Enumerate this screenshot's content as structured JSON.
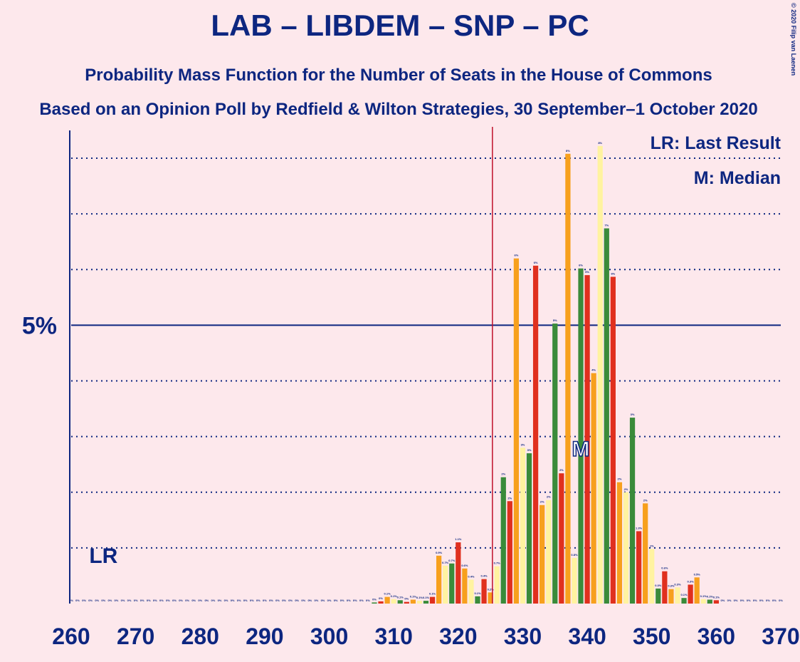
{
  "chart_data": {
    "type": "bar",
    "title": "LAB – LIBDEM – SNP – PC",
    "subtitle": "Probability Mass Function for the Number of Seats in the House of Commons",
    "subtitle2": "Based on an Opinion Poll by Redfield & Wilton Strategies, 30 September–1 October 2020",
    "copyright": "© 2020 Filip van Laenen",
    "legend": [
      "LR: Last Result",
      "M: Median"
    ],
    "x": [
      260,
      261,
      262,
      263,
      264,
      265,
      266,
      267,
      268,
      269,
      270,
      271,
      272,
      273,
      274,
      275,
      276,
      277,
      278,
      279,
      280,
      281,
      282,
      283,
      284,
      285,
      286,
      287,
      288,
      289,
      290,
      291,
      292,
      293,
      294,
      295,
      296,
      297,
      298,
      299,
      300,
      301,
      302,
      303,
      304,
      305,
      306,
      307,
      308,
      309,
      310,
      311,
      312,
      313,
      314,
      315,
      316,
      317,
      318,
      319,
      320,
      321,
      322,
      323,
      324,
      325,
      326,
      327,
      328,
      329,
      330,
      331,
      332,
      333,
      334,
      335,
      336,
      337,
      338,
      339,
      340,
      341,
      342,
      343,
      344,
      345,
      346,
      347,
      348,
      349,
      350,
      351,
      352,
      353,
      354,
      355,
      356,
      357,
      358,
      359,
      360,
      361,
      362,
      363,
      364,
      365,
      366,
      367,
      368,
      369,
      370
    ],
    "values": [
      0,
      0,
      0,
      0,
      0,
      0,
      0,
      0,
      0,
      0,
      0,
      0,
      0,
      0,
      0,
      0,
      0,
      0,
      0,
      0,
      0,
      0,
      0,
      0,
      0,
      0,
      0,
      0,
      0,
      0,
      0,
      0,
      0,
      0,
      0,
      0,
      0,
      0,
      0,
      0,
      0,
      0,
      0,
      0,
      0,
      0,
      0,
      0.02,
      0.04,
      0.12,
      0.08,
      0.06,
      0.03,
      0.07,
      0.05,
      0.05,
      0.12,
      0.86,
      0.68,
      0.72,
      1.1,
      0.63,
      0.43,
      0.13,
      0.44,
      0.2,
      0.67,
      2.27,
      1.84,
      6.2,
      2.8,
      2.7,
      6.07,
      1.77,
      1.86,
      5.03,
      2.34,
      8.08,
      0.82,
      6.02,
      5.9,
      4.14,
      8.22,
      6.74,
      5.87,
      2.18,
      2.0,
      3.34,
      1.3,
      1.8,
      0.98,
      0.27,
      0.58,
      0.26,
      0.29,
      0.1,
      0.34,
      0.47,
      0.08,
      0.07,
      0.06,
      0,
      0,
      0,
      0,
      0,
      0,
      0,
      0,
      0,
      0
    ],
    "value_labels": [
      "0%",
      "0%",
      "0%",
      "0%",
      "0%",
      "0%",
      "0%",
      "0%",
      "0%",
      "0%",
      "0%",
      "0%",
      "0%",
      "0%",
      "0%",
      "0%",
      "0%",
      "0%",
      "0%",
      "0%",
      "0%",
      "0%",
      "0%",
      "0%",
      "0%",
      "0%",
      "0%",
      "0%",
      "0%",
      "0%",
      "0%",
      "0%",
      "0%",
      "0%",
      "0%",
      "0%",
      "0%",
      "0%",
      "0%",
      "0%",
      "0%",
      "0%",
      "0%",
      "0%",
      "0%",
      "0%",
      "0%",
      "0%",
      "0%",
      "0.1%",
      "0.1%",
      "0.1%",
      "0%",
      "0.1%",
      "0.1%",
      "0.1%",
      "0.1%",
      "0.9%",
      "0.7%",
      "0.7%",
      "1.1%",
      "0.6%",
      "0.4%",
      "0.1%",
      "0.4%",
      "0.2%",
      "0.7%",
      "2%",
      "2%",
      "6%",
      "3%",
      "3%",
      "6%",
      "2%",
      "2%",
      "5%",
      "2%",
      "8%",
      "0.8%",
      "6%",
      "6%",
      "4%",
      "8%",
      "7%",
      "6%",
      "2%",
      "2%",
      "3%",
      "1.3%",
      "2%",
      "1%",
      "0.3%",
      "0.6%",
      "0.3%",
      "0.3%",
      "0.1%",
      "0.3%",
      "0.5%",
      "0.1%",
      "0.1%",
      "0.1%",
      "0%",
      "0%",
      "0%",
      "0%",
      "0%",
      "0%",
      "0%",
      "0%",
      "0%",
      "0%"
    ],
    "color_cycle": [
      "#e0301e",
      "#f7a01d",
      "#fff3a0",
      "#3a8b3a"
    ],
    "xlim": [
      260,
      370
    ],
    "xticks": [
      260,
      270,
      280,
      290,
      300,
      310,
      320,
      330,
      340,
      350,
      360,
      370
    ],
    "ylim": [
      0,
      8.5
    ],
    "yticks": [
      {
        "value": 5,
        "label": "5%"
      }
    ],
    "ygrid": [
      1,
      2,
      3,
      4,
      6,
      7,
      8
    ],
    "majority": 325.3,
    "last_result": {
      "seat": 265,
      "label": "LR"
    },
    "median": {
      "seat": 339,
      "label": "M"
    }
  }
}
